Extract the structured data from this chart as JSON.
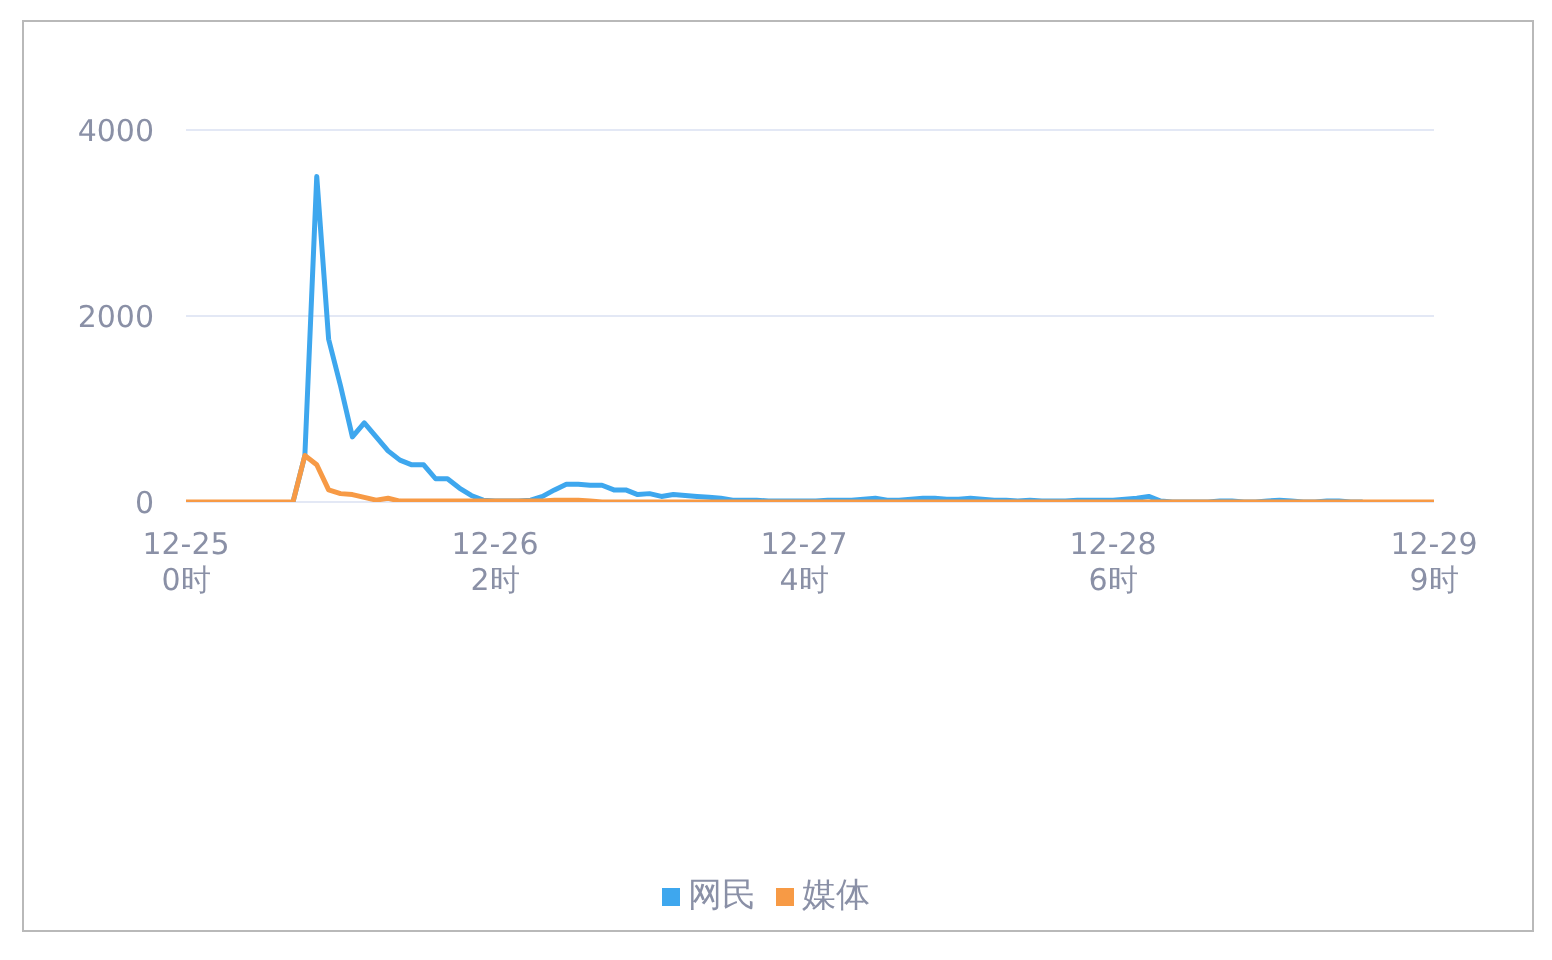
{
  "chart_data": {
    "type": "line",
    "categories": [
      "12-25\n0时",
      null,
      null,
      null,
      null,
      null,
      null,
      null,
      null,
      null,
      null,
      null,
      null,
      null,
      null,
      null,
      null,
      null,
      null,
      null,
      null,
      null,
      null,
      null,
      null,
      null,
      "12-26\n2时",
      null,
      null,
      null,
      null,
      null,
      null,
      null,
      null,
      null,
      null,
      null,
      null,
      null,
      null,
      null,
      null,
      null,
      null,
      null,
      null,
      null,
      null,
      null,
      null,
      null,
      "12-27\n4时",
      null,
      null,
      null,
      null,
      null,
      null,
      null,
      null,
      null,
      null,
      null,
      null,
      null,
      null,
      null,
      null,
      null,
      null,
      null,
      null,
      null,
      null,
      null,
      null,
      null,
      "12-28\n6时",
      null,
      null,
      null,
      null,
      null,
      null,
      null,
      null,
      null,
      null,
      null,
      null,
      null,
      null,
      null,
      null,
      null,
      null,
      null,
      null,
      null,
      null,
      null,
      null,
      null,
      null,
      "12-29\n9时"
    ],
    "series": [
      {
        "name": "网民",
        "color": "#3ea7ee",
        "values": [
          null,
          null,
          null,
          null,
          null,
          null,
          null,
          null,
          null,
          0,
          500,
          3500,
          1750,
          1250,
          700,
          850,
          700,
          550,
          450,
          400,
          400,
          250,
          250,
          150,
          70,
          20,
          10,
          10,
          10,
          20,
          60,
          130,
          190,
          190,
          180,
          180,
          130,
          130,
          80,
          90,
          60,
          80,
          70,
          60,
          50,
          40,
          20,
          20,
          20,
          10,
          10,
          10,
          10,
          10,
          20,
          20,
          20,
          30,
          40,
          20,
          20,
          30,
          40,
          40,
          30,
          30,
          40,
          30,
          20,
          20,
          10,
          20,
          10,
          10,
          10,
          20,
          20,
          20,
          20,
          30,
          40,
          60,
          10,
          0,
          0,
          0,
          0,
          10,
          10,
          0,
          0,
          10,
          20,
          10,
          0,
          0,
          10,
          10,
          0,
          0,
          null,
          null,
          null,
          null,
          null,
          null
        ]
      },
      {
        "name": "媒体",
        "color": "#f79a45",
        "values": [
          0,
          0,
          0,
          0,
          0,
          0,
          0,
          0,
          0,
          0,
          500,
          400,
          130,
          90,
          80,
          50,
          20,
          40,
          10,
          10,
          10,
          10,
          10,
          10,
          10,
          10,
          10,
          10,
          10,
          10,
          10,
          20,
          20,
          20,
          10,
          0,
          0,
          0,
          0,
          0,
          0,
          0,
          0,
          0,
          0,
          0,
          0,
          0,
          0,
          0,
          0,
          0,
          0,
          0,
          0,
          0,
          0,
          0,
          0,
          0,
          0,
          0,
          0,
          0,
          0,
          0,
          0,
          0,
          0,
          0,
          0,
          0,
          0,
          0,
          0,
          0,
          0,
          0,
          0,
          0,
          0,
          0,
          0,
          0,
          0,
          0,
          0,
          0,
          0,
          0,
          0,
          0,
          0,
          0,
          0,
          0,
          0,
          0,
          0,
          0,
          0,
          0,
          0,
          0,
          0,
          0
        ]
      }
    ],
    "ylim": [
      0,
      4000
    ],
    "yticks": [
      0,
      2000,
      4000
    ],
    "grid": "y",
    "legend": "bottom",
    "marker": "none",
    "line_style": "solid"
  }
}
